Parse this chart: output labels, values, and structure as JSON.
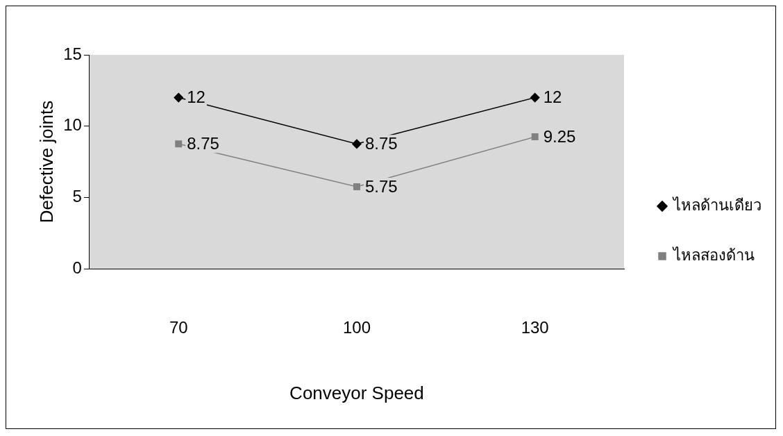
{
  "chart_data": {
    "type": "line",
    "xlabel": "Conveyor Speed",
    "ylabel": "Defective joints",
    "categories": [
      "70",
      "100",
      "130"
    ],
    "series": [
      {
        "name": "ไหลด้านเดียว",
        "color": "#000000",
        "marker": "diamond",
        "values": [
          12,
          8.75,
          12
        ]
      },
      {
        "name": "ไหลสองด้าน",
        "color": "#808080",
        "marker": "square",
        "values": [
          8.75,
          5.75,
          9.25
        ]
      }
    ],
    "ylim": [
      0,
      15
    ],
    "yticks": [
      0,
      5,
      10,
      15
    ],
    "grid": false,
    "legend": "right",
    "data_labels": true,
    "line_style": "solid"
  }
}
